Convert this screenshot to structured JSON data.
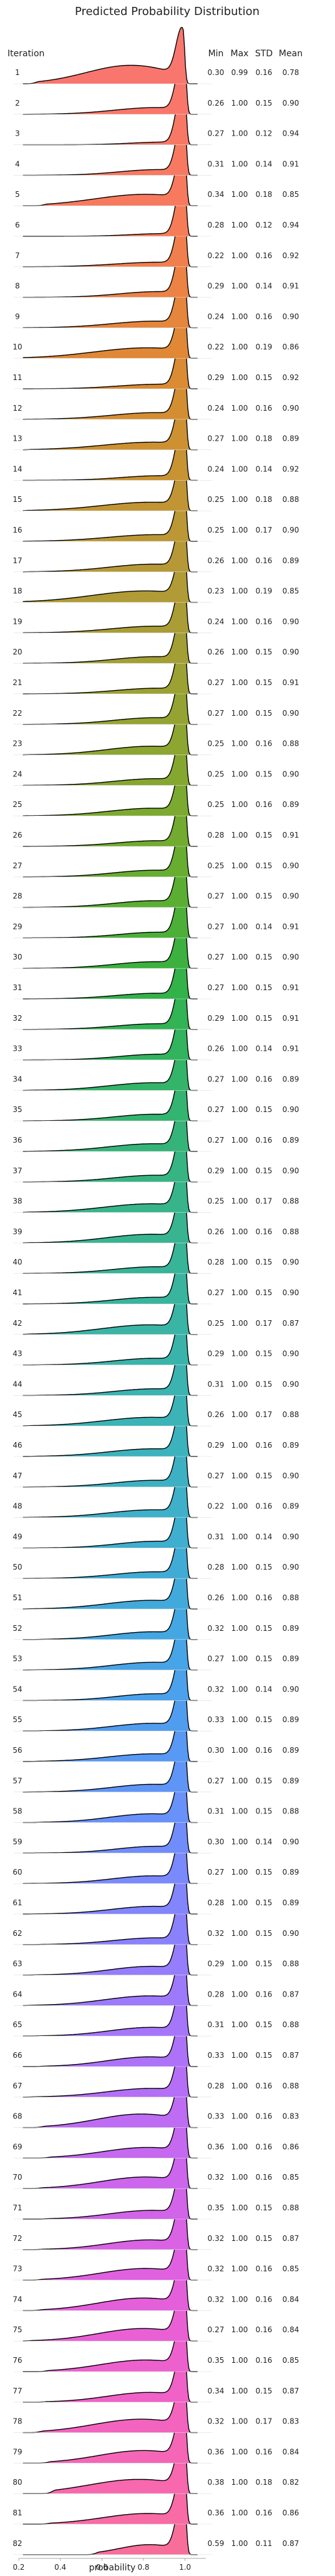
{
  "chart_data": {
    "type": "ridgeline",
    "title": "Predicted Probability Distribution",
    "ylabel": "Iteration",
    "xlabel": "probability",
    "xlim": [
      0.2,
      1.1
    ],
    "xticks": [
      0.2,
      0.4,
      0.6,
      0.8,
      1.0
    ],
    "xtick_labels": [
      "0.2",
      "0.4",
      "0.6",
      "0.8",
      "1.0"
    ],
    "grid": false,
    "columns": [
      "Min",
      "Max",
      "STD",
      "Mean"
    ],
    "rows": [
      {
        "label": "1",
        "min": "0.30",
        "max": "0.99",
        "std": "0.16",
        "mean": "0.78",
        "color": "#f8766d"
      },
      {
        "label": "2",
        "min": "0.26",
        "max": "1.00",
        "std": "0.15",
        "mean": "0.90",
        "color": "#f8776a"
      },
      {
        "label": "3",
        "min": "0.27",
        "max": "1.00",
        "std": "0.12",
        "mean": "0.94",
        "color": "#f87866"
      },
      {
        "label": "4",
        "min": "0.31",
        "max": "1.00",
        "std": "0.14",
        "mean": "0.91",
        "color": "#f87962"
      },
      {
        "label": "5",
        "min": "0.34",
        "max": "1.00",
        "std": "0.18",
        "mean": "0.85",
        "color": "#f87a5e"
      },
      {
        "label": "6",
        "min": "0.28",
        "max": "1.00",
        "std": "0.12",
        "mean": "0.94",
        "color": "#f67c57"
      },
      {
        "label": "7",
        "min": "0.22",
        "max": "1.00",
        "std": "0.16",
        "mean": "0.92",
        "color": "#f17f4d"
      },
      {
        "label": "8",
        "min": "0.29",
        "max": "1.00",
        "std": "0.14",
        "mean": "0.91",
        "color": "#ec8244"
      },
      {
        "label": "9",
        "min": "0.24",
        "max": "1.00",
        "std": "0.16",
        "mean": "0.90",
        "color": "#e6853c"
      },
      {
        "label": "10",
        "min": "0.22",
        "max": "1.00",
        "std": "0.19",
        "mean": "0.86",
        "color": "#e08836"
      },
      {
        "label": "11",
        "min": "0.29",
        "max": "1.00",
        "std": "0.15",
        "mean": "0.92",
        "color": "#da8b33"
      },
      {
        "label": "12",
        "min": "0.24",
        "max": "1.00",
        "std": "0.16",
        "mean": "0.90",
        "color": "#d48e32"
      },
      {
        "label": "13",
        "min": "0.27",
        "max": "1.00",
        "std": "0.18",
        "mean": "0.89",
        "color": "#ce9132"
      },
      {
        "label": "14",
        "min": "0.24",
        "max": "1.00",
        "std": "0.14",
        "mean": "0.92",
        "color": "#c89333"
      },
      {
        "label": "15",
        "min": "0.25",
        "max": "1.00",
        "std": "0.18",
        "mean": "0.88",
        "color": "#c29534"
      },
      {
        "label": "16",
        "min": "0.25",
        "max": "1.00",
        "std": "0.17",
        "mean": "0.90",
        "color": "#bc9735"
      },
      {
        "label": "17",
        "min": "0.26",
        "max": "1.00",
        "std": "0.16",
        "mean": "0.89",
        "color": "#b69936"
      },
      {
        "label": "18",
        "min": "0.23",
        "max": "1.00",
        "std": "0.19",
        "mean": "0.85",
        "color": "#b09b36"
      },
      {
        "label": "19",
        "min": "0.24",
        "max": "1.00",
        "std": "0.16",
        "mean": "0.90",
        "color": "#aa9d35"
      },
      {
        "label": "20",
        "min": "0.26",
        "max": "1.00",
        "std": "0.15",
        "mean": "0.90",
        "color": "#a39f34"
      },
      {
        "label": "21",
        "min": "0.27",
        "max": "1.00",
        "std": "0.15",
        "mean": "0.91",
        "color": "#9ca133"
      },
      {
        "label": "22",
        "min": "0.27",
        "max": "1.00",
        "std": "0.15",
        "mean": "0.90",
        "color": "#95a332"
      },
      {
        "label": "23",
        "min": "0.25",
        "max": "1.00",
        "std": "0.16",
        "mean": "0.88",
        "color": "#8da531"
      },
      {
        "label": "24",
        "min": "0.25",
        "max": "1.00",
        "std": "0.15",
        "mean": "0.90",
        "color": "#85a730"
      },
      {
        "label": "25",
        "min": "0.25",
        "max": "1.00",
        "std": "0.16",
        "mean": "0.89",
        "color": "#7ca92f"
      },
      {
        "label": "26",
        "min": "0.28",
        "max": "1.00",
        "std": "0.15",
        "mean": "0.91",
        "color": "#72ab2f"
      },
      {
        "label": "27",
        "min": "0.25",
        "max": "1.00",
        "std": "0.15",
        "mean": "0.90",
        "color": "#67ad30"
      },
      {
        "label": "28",
        "min": "0.27",
        "max": "1.00",
        "std": "0.15",
        "mean": "0.90",
        "color": "#5aaf33"
      },
      {
        "label": "29",
        "min": "0.27",
        "max": "1.00",
        "std": "0.14",
        "mean": "0.91",
        "color": "#4cb038"
      },
      {
        "label": "30",
        "min": "0.27",
        "max": "1.00",
        "std": "0.15",
        "mean": "0.90",
        "color": "#3db13f"
      },
      {
        "label": "31",
        "min": "0.27",
        "max": "1.00",
        "std": "0.15",
        "mean": "0.91",
        "color": "#33b249"
      },
      {
        "label": "32",
        "min": "0.29",
        "max": "1.00",
        "std": "0.15",
        "mean": "0.91",
        "color": "#32b354"
      },
      {
        "label": "33",
        "min": "0.26",
        "max": "1.00",
        "std": "0.14",
        "mean": "0.91",
        "color": "#32b35e"
      },
      {
        "label": "34",
        "min": "0.27",
        "max": "1.00",
        "std": "0.16",
        "mean": "0.89",
        "color": "#33b468"
      },
      {
        "label": "35",
        "min": "0.27",
        "max": "1.00",
        "std": "0.15",
        "mean": "0.90",
        "color": "#34b471"
      },
      {
        "label": "36",
        "min": "0.27",
        "max": "1.00",
        "std": "0.16",
        "mean": "0.89",
        "color": "#35b47a"
      },
      {
        "label": "37",
        "min": "0.29",
        "max": "1.00",
        "std": "0.15",
        "mean": "0.90",
        "color": "#36b482"
      },
      {
        "label": "38",
        "min": "0.25",
        "max": "1.00",
        "std": "0.17",
        "mean": "0.88",
        "color": "#37b48a"
      },
      {
        "label": "39",
        "min": "0.26",
        "max": "1.00",
        "std": "0.16",
        "mean": "0.88",
        "color": "#38b491"
      },
      {
        "label": "40",
        "min": "0.28",
        "max": "1.00",
        "std": "0.15",
        "mean": "0.90",
        "color": "#38b498"
      },
      {
        "label": "41",
        "min": "0.27",
        "max": "1.00",
        "std": "0.15",
        "mean": "0.90",
        "color": "#39b49f"
      },
      {
        "label": "42",
        "min": "0.25",
        "max": "1.00",
        "std": "0.17",
        "mean": "0.87",
        "color": "#3ab4a5"
      },
      {
        "label": "43",
        "min": "0.29",
        "max": "1.00",
        "std": "0.15",
        "mean": "0.90",
        "color": "#3ab4ab"
      },
      {
        "label": "44",
        "min": "0.31",
        "max": "1.00",
        "std": "0.15",
        "mean": "0.90",
        "color": "#3bb3b1"
      },
      {
        "label": "45",
        "min": "0.26",
        "max": "1.00",
        "std": "0.17",
        "mean": "0.88",
        "color": "#3cb3b7"
      },
      {
        "label": "46",
        "min": "0.29",
        "max": "1.00",
        "std": "0.16",
        "mean": "0.89",
        "color": "#3cb2bd"
      },
      {
        "label": "47",
        "min": "0.27",
        "max": "1.00",
        "std": "0.15",
        "mean": "0.90",
        "color": "#3db1c3"
      },
      {
        "label": "48",
        "min": "0.22",
        "max": "1.00",
        "std": "0.16",
        "mean": "0.89",
        "color": "#3eb0c9"
      },
      {
        "label": "49",
        "min": "0.31",
        "max": "1.00",
        "std": "0.14",
        "mean": "0.90",
        "color": "#3faecf"
      },
      {
        "label": "50",
        "min": "0.28",
        "max": "1.00",
        "std": "0.15",
        "mean": "0.90",
        "color": "#40acd5"
      },
      {
        "label": "51",
        "min": "0.26",
        "max": "1.00",
        "std": "0.16",
        "mean": "0.88",
        "color": "#42aadb"
      },
      {
        "label": "52",
        "min": "0.32",
        "max": "1.00",
        "std": "0.15",
        "mean": "0.89",
        "color": "#44a7e1"
      },
      {
        "label": "53",
        "min": "0.27",
        "max": "1.00",
        "std": "0.15",
        "mean": "0.89",
        "color": "#47a4e7"
      },
      {
        "label": "54",
        "min": "0.32",
        "max": "1.00",
        "std": "0.14",
        "mean": "0.90",
        "color": "#4ba1ec"
      },
      {
        "label": "55",
        "min": "0.33",
        "max": "1.00",
        "std": "0.15",
        "mean": "0.89",
        "color": "#509df0"
      },
      {
        "label": "56",
        "min": "0.30",
        "max": "1.00",
        "std": "0.16",
        "mean": "0.89",
        "color": "#5799f4"
      },
      {
        "label": "57",
        "min": "0.27",
        "max": "1.00",
        "std": "0.15",
        "mean": "0.89",
        "color": "#5f95f7"
      },
      {
        "label": "58",
        "min": "0.31",
        "max": "1.00",
        "std": "0.15",
        "mean": "0.88",
        "color": "#6891f9"
      },
      {
        "label": "59",
        "min": "0.30",
        "max": "1.00",
        "std": "0.14",
        "mean": "0.90",
        "color": "#718dfb"
      },
      {
        "label": "60",
        "min": "0.27",
        "max": "1.00",
        "std": "0.15",
        "mean": "0.89",
        "color": "#7a89fc"
      },
      {
        "label": "61",
        "min": "0.28",
        "max": "1.00",
        "std": "0.15",
        "mean": "0.89",
        "color": "#8385fd"
      },
      {
        "label": "62",
        "min": "0.32",
        "max": "1.00",
        "std": "0.15",
        "mean": "0.90",
        "color": "#8c81fd"
      },
      {
        "label": "63",
        "min": "0.29",
        "max": "1.00",
        "std": "0.15",
        "mean": "0.88",
        "color": "#957dfc"
      },
      {
        "label": "64",
        "min": "0.28",
        "max": "1.00",
        "std": "0.16",
        "mean": "0.87",
        "color": "#9d79fb"
      },
      {
        "label": "65",
        "min": "0.31",
        "max": "1.00",
        "std": "0.15",
        "mean": "0.88",
        "color": "#a576fa"
      },
      {
        "label": "66",
        "min": "0.33",
        "max": "1.00",
        "std": "0.15",
        "mean": "0.87",
        "color": "#ad72f8"
      },
      {
        "label": "67",
        "min": "0.28",
        "max": "1.00",
        "std": "0.16",
        "mean": "0.88",
        "color": "#b56ff6"
      },
      {
        "label": "68",
        "min": "0.33",
        "max": "1.00",
        "std": "0.16",
        "mean": "0.83",
        "color": "#bd6cf3"
      },
      {
        "label": "69",
        "min": "0.36",
        "max": "1.00",
        "std": "0.16",
        "mean": "0.86",
        "color": "#c469f0"
      },
      {
        "label": "70",
        "min": "0.32",
        "max": "1.00",
        "std": "0.16",
        "mean": "0.85",
        "color": "#cb66ed"
      },
      {
        "label": "71",
        "min": "0.35",
        "max": "1.00",
        "std": "0.15",
        "mean": "0.88",
        "color": "#d264e9"
      },
      {
        "label": "72",
        "min": "0.32",
        "max": "1.00",
        "std": "0.15",
        "mean": "0.87",
        "color": "#d962e5"
      },
      {
        "label": "73",
        "min": "0.32",
        "max": "1.00",
        "std": "0.16",
        "mean": "0.85",
        "color": "#df61e0"
      },
      {
        "label": "74",
        "min": "0.32",
        "max": "1.00",
        "std": "0.16",
        "mean": "0.84",
        "color": "#e460db"
      },
      {
        "label": "75",
        "min": "0.27",
        "max": "1.00",
        "std": "0.16",
        "mean": "0.84",
        "color": "#e960d5"
      },
      {
        "label": "76",
        "min": "0.35",
        "max": "1.00",
        "std": "0.16",
        "mean": "0.85",
        "color": "#ed61ce"
      },
      {
        "label": "77",
        "min": "0.34",
        "max": "1.00",
        "std": "0.15",
        "mean": "0.87",
        "color": "#f062c7"
      },
      {
        "label": "78",
        "min": "0.32",
        "max": "1.00",
        "std": "0.17",
        "mean": "0.83",
        "color": "#f364bf"
      },
      {
        "label": "79",
        "min": "0.36",
        "max": "1.00",
        "std": "0.16",
        "mean": "0.84",
        "color": "#f566b7"
      },
      {
        "label": "80",
        "min": "0.38",
        "max": "1.00",
        "std": "0.18",
        "mean": "0.82",
        "color": "#f768ae"
      },
      {
        "label": "81",
        "min": "0.36",
        "max": "1.00",
        "std": "0.16",
        "mean": "0.86",
        "color": "#f86ba5"
      },
      {
        "label": "82",
        "min": "0.59",
        "max": "1.00",
        "std": "0.11",
        "mean": "0.87",
        "color": "#f86e9b"
      }
    ]
  }
}
